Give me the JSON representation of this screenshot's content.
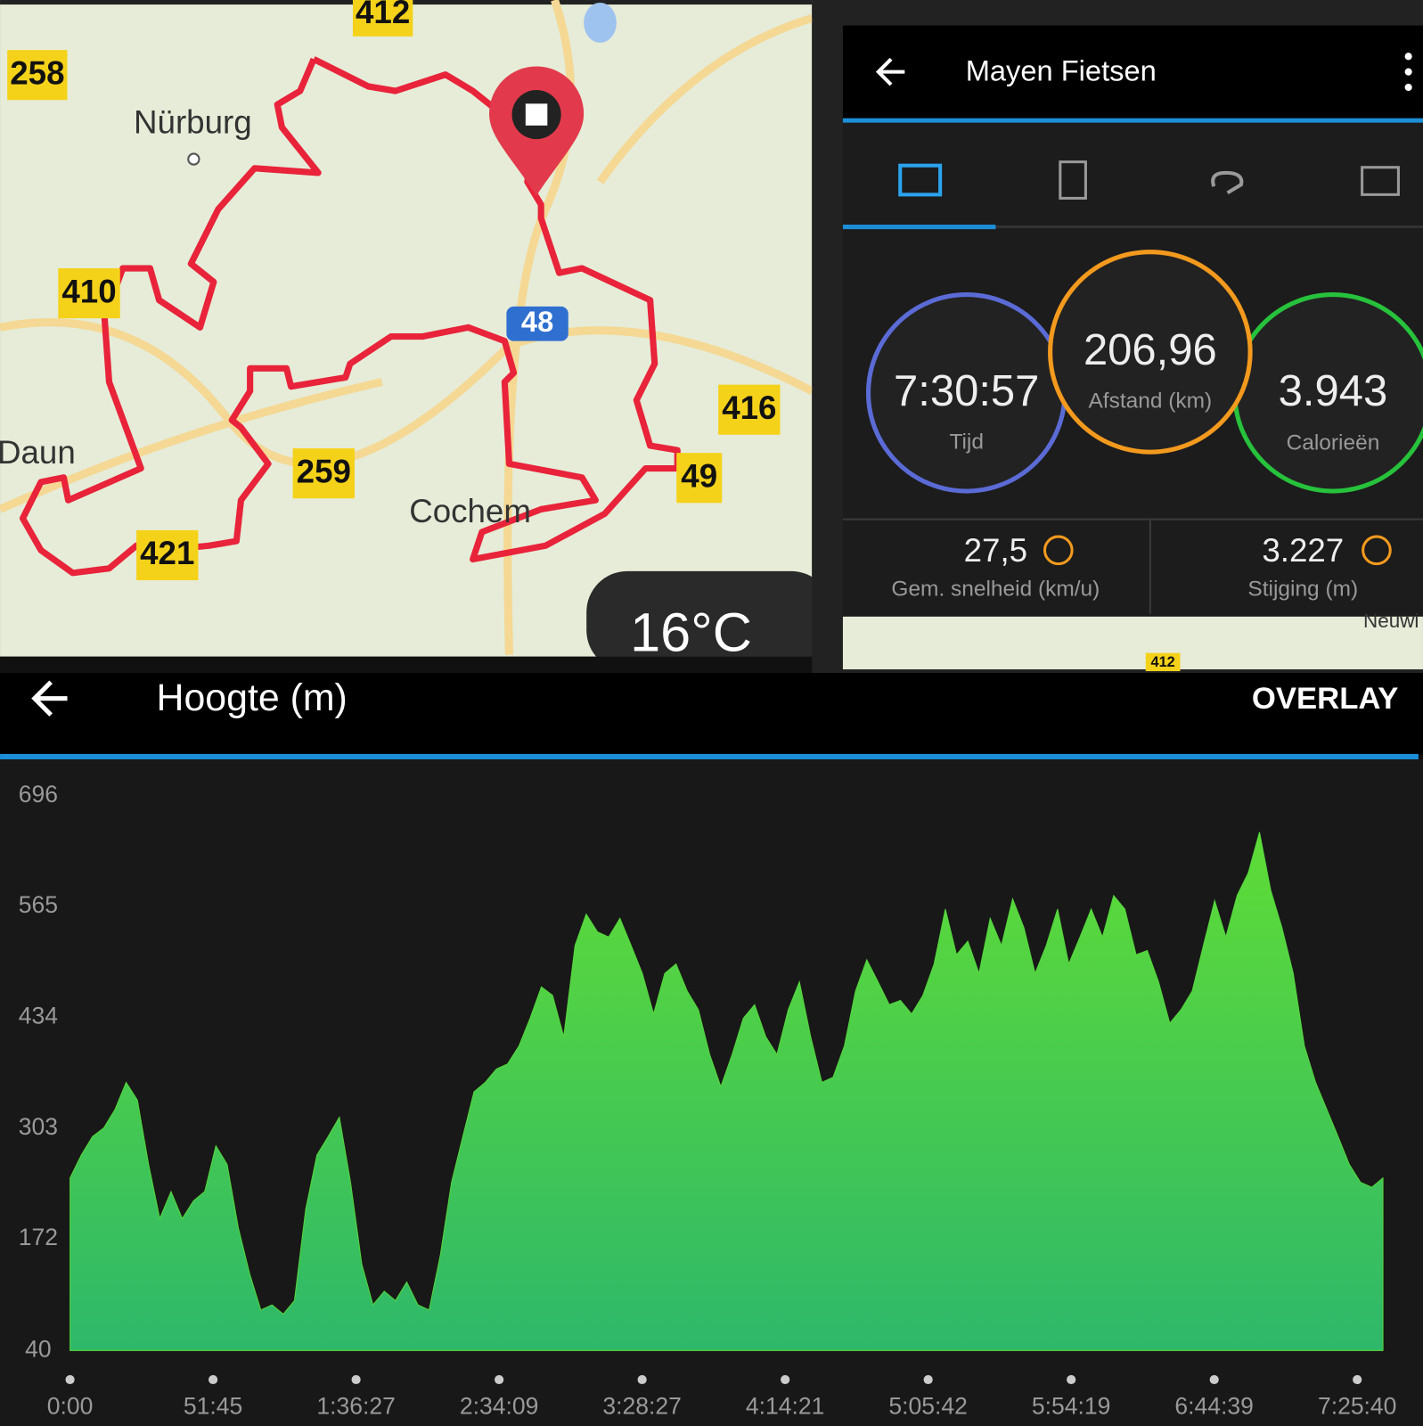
{
  "map": {
    "labels": [
      "258",
      "412",
      "Nürburg",
      "410",
      "Daun",
      "416",
      "49",
      "259",
      "421",
      "Cochem"
    ],
    "highway": "48",
    "weather": "16°C"
  },
  "activity": {
    "title": "Mayen Fietsen",
    "time": "7:30:57",
    "time_label": "Tijd",
    "distance": "206,96",
    "distance_label": "Afstand (km)",
    "calories": "3.943",
    "calories_label": "Calorieën",
    "avg_speed": "27,5",
    "avg_speed_label": "Gem. snelheid (km/u)",
    "ascent": "3.227",
    "ascent_label": "Stijging (m)",
    "minimap_labels": [
      "Neuwi",
      "412"
    ]
  },
  "header": {
    "title": "Hoogte (m)",
    "action": "OVERLAY"
  },
  "chart_data": {
    "type": "area",
    "color": "#55d63c",
    "values": [
      244,
      271,
      293,
      303,
      325,
      357,
      336,
      260,
      196,
      228,
      196,
      217,
      228,
      282,
      260,
      185,
      131,
      88,
      94,
      83,
      99,
      207,
      271,
      293,
      316,
      239,
      142,
      94,
      110,
      99,
      121,
      94,
      88,
      153,
      239,
      293,
      346,
      357,
      373,
      379,
      400,
      433,
      470,
      460,
      411,
      519,
      556,
      535,
      529,
      551,
      519,
      486,
      438,
      486,
      497,
      465,
      443,
      390,
      352,
      390,
      433,
      449,
      411,
      390,
      443,
      476,
      411,
      357,
      363,
      400,
      465,
      502,
      476,
      449,
      454,
      438,
      460,
      497,
      562,
      508,
      524,
      486,
      551,
      519,
      574,
      540,
      486,
      519,
      562,
      497,
      529,
      562,
      529,
      578,
      562,
      508,
      513,
      476,
      427,
      443,
      465,
      519,
      572,
      529,
      578,
      605,
      653,
      584,
      540,
      486,
      400,
      357,
      325,
      293,
      260,
      239,
      233,
      244
    ],
    "ylim": [
      40,
      696
    ],
    "yticks": [
      696,
      565,
      434,
      303,
      172,
      40
    ],
    "xtick_labels": [
      "0:00",
      "51:45",
      "1:36:27",
      "2:34:09",
      "3:28:27",
      "4:14:21",
      "5:05:42",
      "5:54:19",
      "6:44:39",
      "7:25:40"
    ]
  }
}
